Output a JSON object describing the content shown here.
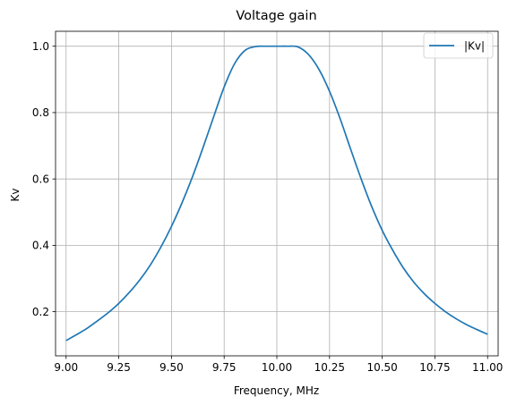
{
  "chart_data": {
    "type": "line",
    "title": "Voltage gain",
    "xlabel": "Frequency, MHz",
    "ylabel": "Kv",
    "xlim": [
      8.95,
      11.05
    ],
    "ylim": [
      0.067,
      1.045
    ],
    "xticks": [
      9.0,
      9.25,
      9.5,
      9.75,
      10.0,
      10.25,
      10.5,
      10.75,
      11.0
    ],
    "xtick_labels": [
      "9.00",
      "9.25",
      "9.50",
      "9.75",
      "10.00",
      "10.25",
      "10.50",
      "10.75",
      "11.00"
    ],
    "yticks": [
      0.2,
      0.4,
      0.6,
      0.8,
      1.0
    ],
    "ytick_labels": [
      "0.2",
      "0.4",
      "0.6",
      "0.8",
      "1.0"
    ],
    "grid": true,
    "legend": "top-right",
    "series": [
      {
        "name": "|Kv|",
        "color": "#1f77b4",
        "x": [
          9.0,
          9.05,
          9.1,
          9.15,
          9.2,
          9.25,
          9.3,
          9.35,
          9.4,
          9.45,
          9.5,
          9.55,
          9.6,
          9.65,
          9.7,
          9.75,
          9.8,
          9.85,
          9.9,
          9.95,
          10.0,
          10.05,
          10.1,
          10.15,
          10.2,
          10.25,
          10.3,
          10.35,
          10.4,
          10.45,
          10.5,
          10.55,
          10.6,
          10.65,
          10.7,
          10.75,
          10.8,
          10.85,
          10.9,
          10.95,
          11.0
        ],
        "y": [
          0.113,
          0.131,
          0.15,
          0.173,
          0.197,
          0.225,
          0.258,
          0.296,
          0.341,
          0.395,
          0.457,
          0.528,
          0.607,
          0.695,
          0.787,
          0.877,
          0.948,
          0.988,
          0.999,
          1.0,
          1.0,
          1.0,
          0.998,
          0.975,
          0.93,
          0.864,
          0.782,
          0.69,
          0.6,
          0.517,
          0.445,
          0.385,
          0.332,
          0.289,
          0.254,
          0.225,
          0.2,
          0.179,
          0.161,
          0.146,
          0.132
        ]
      }
    ]
  }
}
